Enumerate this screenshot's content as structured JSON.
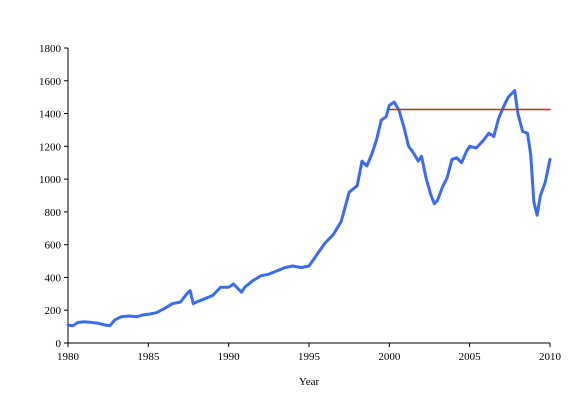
{
  "chart_data": {
    "type": "line",
    "title": "",
    "xlabel": "Year",
    "ylabel": "",
    "xlim": [
      1980,
      2010
    ],
    "ylim": [
      0,
      1800
    ],
    "xticks": [
      1980,
      1985,
      1990,
      1995,
      2000,
      2005,
      2010
    ],
    "yticks": [
      0,
      200,
      400,
      600,
      800,
      1000,
      1200,
      1400,
      1600,
      1800
    ],
    "grid": false,
    "legend": "none",
    "series": [
      {
        "color": "#3b6cf0",
        "x": [
          1980.0,
          1980.3,
          1980.6,
          1981.0,
          1981.5,
          1981.9,
          1982.3,
          1982.6,
          1982.9,
          1983.3,
          1983.8,
          1984.3,
          1984.6,
          1985.0,
          1985.5,
          1986.0,
          1986.5,
          1987.0,
          1987.4,
          1987.6,
          1987.8,
          1988.0,
          1988.5,
          1989.0,
          1989.5,
          1990.0,
          1990.3,
          1990.6,
          1990.8,
          1991.0,
          1991.5,
          1992.0,
          1992.5,
          1993.0,
          1993.5,
          1994.0,
          1994.5,
          1995.0,
          1995.5,
          1996.0,
          1996.5,
          1997.0,
          1997.5,
          1998.0,
          1998.3,
          1998.6,
          1998.9,
          1999.2,
          1999.5,
          1999.8,
          2000.0,
          2000.3,
          2000.6,
          2000.9,
          2001.2,
          2001.5,
          2001.8,
          2002.0,
          2002.3,
          2002.6,
          2002.8,
          2003.0,
          2003.3,
          2003.6,
          2003.9,
          2004.2,
          2004.5,
          2004.8,
          2005.0,
          2005.4,
          2005.8,
          2006.2,
          2006.5,
          2006.8,
          2007.1,
          2007.4,
          2007.8,
          2008.0,
          2008.3,
          2008.6,
          2008.8,
          2009.0,
          2009.2,
          2009.4,
          2009.7,
          2010.0
        ],
        "values": [
          110,
          105,
          125,
          130,
          125,
          120,
          110,
          105,
          140,
          160,
          165,
          160,
          170,
          175,
          185,
          210,
          240,
          250,
          300,
          320,
          240,
          250,
          270,
          290,
          340,
          340,
          360,
          330,
          310,
          340,
          380,
          410,
          420,
          440,
          460,
          470,
          460,
          470,
          540,
          610,
          660,
          740,
          920,
          960,
          1110,
          1080,
          1150,
          1240,
          1360,
          1380,
          1450,
          1470,
          1420,
          1320,
          1200,
          1160,
          1110,
          1140,
          1000,
          900,
          850,
          870,
          950,
          1010,
          1120,
          1130,
          1100,
          1170,
          1200,
          1190,
          1230,
          1280,
          1260,
          1370,
          1440,
          1500,
          1540,
          1400,
          1290,
          1280,
          1150,
          860,
          780,
          900,
          980,
          1120
        ]
      },
      {
        "color": "#e02020",
        "x": [
          2000.0,
          2010.0
        ],
        "values": [
          1425,
          1425
        ]
      }
    ]
  }
}
